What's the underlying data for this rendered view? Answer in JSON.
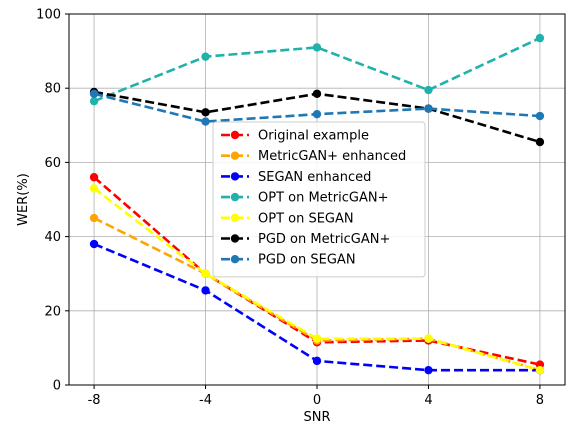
{
  "chart_data": {
    "type": "line",
    "title": "",
    "xlabel": "SNR",
    "ylabel": "WER(%)",
    "x": [
      -8,
      -4,
      0,
      4,
      8
    ],
    "x_tick_labels": [
      "-8",
      "-4",
      "0",
      "4",
      "8"
    ],
    "xlim": [
      -8.9,
      8.9
    ],
    "ylim": [
      0,
      100
    ],
    "y_ticks": [
      0,
      20,
      40,
      60,
      80,
      100
    ],
    "y_tick_labels": [
      "0",
      "20",
      "40",
      "60",
      "80",
      "100"
    ],
    "grid": true,
    "legend_placement": "center",
    "series": [
      {
        "name": "Original example",
        "color": "#ff0000",
        "values": [
          56,
          30,
          11.5,
          12,
          5.5
        ]
      },
      {
        "name": "MetricGAN+ enhanced",
        "color": "#ffa500",
        "values": [
          45,
          30,
          12,
          12.5,
          4
        ]
      },
      {
        "name": "SEGAN enhanced",
        "color": "#0000ff",
        "values": [
          38,
          25.5,
          6.5,
          4,
          4
        ]
      },
      {
        "name": "OPT on MetricGAN+",
        "color": "#20b2aa",
        "values": [
          76.5,
          88.5,
          91,
          79.5,
          93.5
        ]
      },
      {
        "name": "OPT on SEGAN",
        "color": "#ffff00",
        "values": [
          53,
          30,
          12.5,
          12.5,
          4
        ]
      },
      {
        "name": "PGD on MetricGAN+",
        "color": "#000000",
        "values": [
          79,
          73.5,
          78.5,
          74.5,
          65.5
        ]
      },
      {
        "name": "PGD on SEGAN",
        "color": "#1f77b4",
        "values": [
          78.5,
          71,
          73,
          74.5,
          72.5
        ]
      }
    ]
  }
}
